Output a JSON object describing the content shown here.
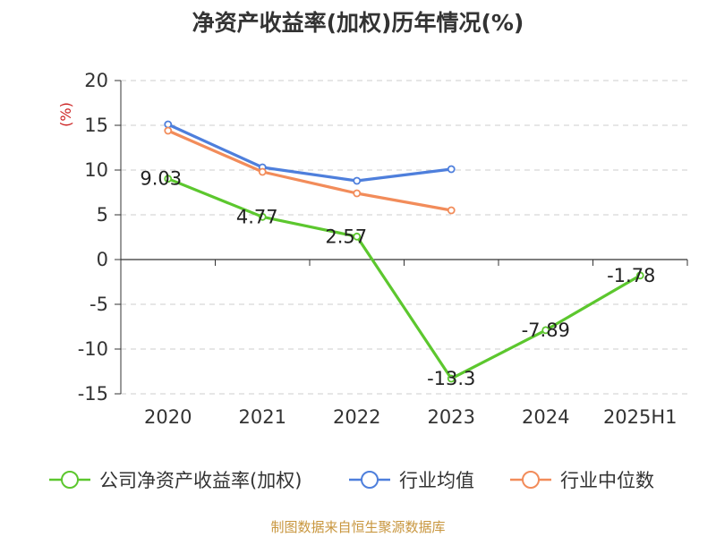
{
  "chart_data": {
    "type": "line",
    "title": "净资产收益率(加权)历年情况(%)",
    "ylabel": "(%)",
    "categories": [
      "2020",
      "2021",
      "2022",
      "2023",
      "2024",
      "2025H1"
    ],
    "ylim": [
      -15,
      20
    ],
    "yticks": [
      20,
      15,
      10,
      5,
      0,
      -5,
      -10,
      -15
    ],
    "grid": true,
    "legend_position": "bottom",
    "series": [
      {
        "name": "公司净资产收益率(加权)",
        "color": "#5cc72e",
        "values": [
          9.03,
          4.77,
          2.57,
          -13.3,
          -7.89,
          -1.78
        ],
        "labels": [
          "9.03",
          "4.77",
          "2.57",
          "-13.3",
          "-7.89",
          "-1.78"
        ]
      },
      {
        "name": "行业均值",
        "color": "#4e7fdc",
        "values": [
          15.1,
          10.3,
          8.8,
          10.1,
          null,
          null
        ]
      },
      {
        "name": "行业中位数",
        "color": "#f28c5a",
        "values": [
          14.4,
          9.8,
          7.4,
          5.5,
          null,
          null
        ]
      }
    ]
  },
  "source_note": "制图数据来自恒生聚源数据库"
}
